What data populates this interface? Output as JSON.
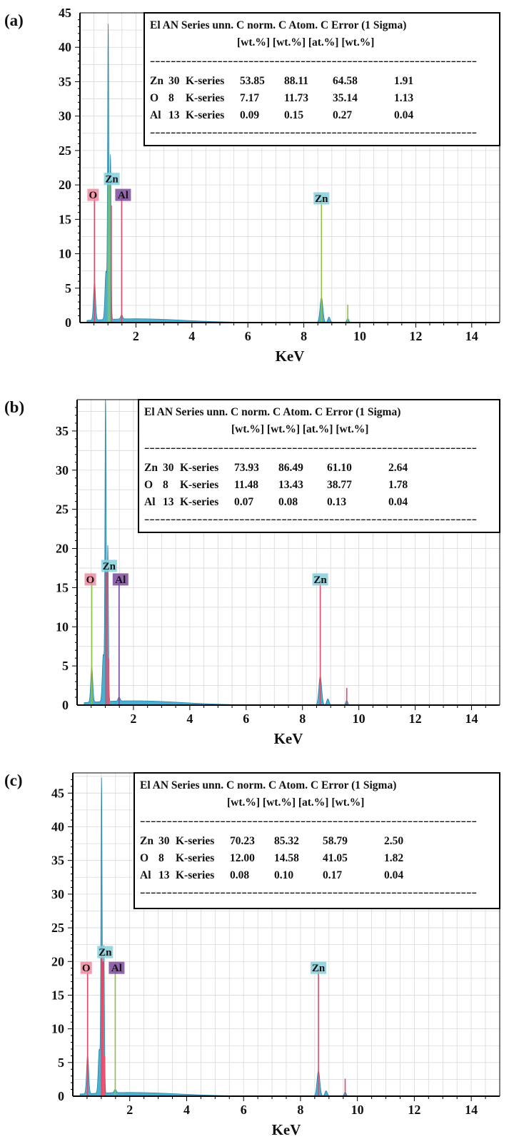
{
  "chart_data": [
    {
      "type": "line",
      "panel_label": "(a)",
      "xlabel": "KeV",
      "ylabel": "",
      "xlim": [
        0,
        15
      ],
      "ylim": [
        0,
        45
      ],
      "x_ticks": [
        "2",
        "4",
        "6",
        "8",
        "10",
        "12",
        "14"
      ],
      "y_ticks": [
        "0",
        "5",
        "10",
        "15",
        "20",
        "25",
        "30",
        "35",
        "40",
        "45"
      ],
      "grid": true,
      "spectrum_color": "#3aa6c8",
      "peaks": [
        {
          "x": 0.52,
          "y": 5.5,
          "w": 0.05
        },
        {
          "x": 0.93,
          "y": 7.0,
          "w": 0.05
        },
        {
          "x": 1.01,
          "y": 42.5,
          "w": 0.03
        },
        {
          "x": 1.09,
          "y": 24.0,
          "w": 0.03
        },
        {
          "x": 1.49,
          "y": 0.6,
          "w": 0.05
        },
        {
          "x": 8.63,
          "y": 3.7,
          "w": 0.07
        },
        {
          "x": 8.9,
          "y": 0.8,
          "w": 0.06
        },
        {
          "x": 9.57,
          "y": 0.6,
          "w": 0.05
        }
      ],
      "markers": [
        {
          "element": "O",
          "x": 0.52,
          "height": 18.5,
          "line_color": "#e24a6a",
          "tag_color": "#f08aa0"
        },
        {
          "element": "Zn",
          "x": 1.01,
          "height": 20.0,
          "line_color": "#8cc63f",
          "tag_color": "#86d0dc"
        },
        {
          "element": "Al",
          "x": 1.49,
          "height": 18.5,
          "line_color": "#e24a6a",
          "tag_color": "#7d4a9e"
        },
        {
          "element": "Zn",
          "x": 8.63,
          "height": 18.0,
          "line_color": "#8cc63f",
          "tag_color": "#86d0dc"
        }
      ],
      "extra_lines": [
        {
          "x": 1.06,
          "height": 20.0,
          "color": "#8cc63f"
        },
        {
          "x": 1.12,
          "height": 17.0,
          "color": "#e24a6a"
        },
        {
          "x": 9.57,
          "height": 2.6,
          "color": "#8cc63f"
        }
      ],
      "table": {
        "header1": "El AN Series  unn.  C norm.  C Atom.  C Error (1 Sigma)",
        "header2": "[wt.%]  [wt.%]  [at.%]    [wt.%]",
        "divider": "---------------------------------------------------------------",
        "rows": [
          {
            "el": "Zn",
            "an": "30",
            "series": "K-series",
            "unn": "53.85",
            "norm": "88.11",
            "atom": "64.58",
            "err": "1.91"
          },
          {
            "el": "O",
            "an": "8",
            "series": "K-series",
            "unn": "7.17",
            "norm": "11.73",
            "atom": "35.14",
            "err": "1.13"
          },
          {
            "el": "Al",
            "an": "13",
            "series": "K-series",
            "unn": "0.09",
            "norm": "0.15",
            "atom": "0.27",
            "err": "0.04"
          }
        ]
      }
    },
    {
      "type": "line",
      "panel_label": "(b)",
      "xlabel": "KeV",
      "ylabel": "",
      "xlim": [
        0,
        15
      ],
      "ylim": [
        0,
        39
      ],
      "x_ticks": [
        "2",
        "4",
        "6",
        "8",
        "10",
        "12",
        "14"
      ],
      "y_ticks": [
        "0",
        "5",
        "10",
        "15",
        "20",
        "25",
        "30",
        "35"
      ],
      "grid": true,
      "spectrum_color": "#3aa6c8",
      "peaks": [
        {
          "x": 0.52,
          "y": 4.5,
          "w": 0.05
        },
        {
          "x": 0.93,
          "y": 6.0,
          "w": 0.05
        },
        {
          "x": 1.01,
          "y": 39.0,
          "w": 0.03
        },
        {
          "x": 1.09,
          "y": 20.0,
          "w": 0.03
        },
        {
          "x": 1.49,
          "y": 0.5,
          "w": 0.05
        },
        {
          "x": 8.63,
          "y": 3.7,
          "w": 0.07
        },
        {
          "x": 8.9,
          "y": 0.8,
          "w": 0.06
        },
        {
          "x": 9.57,
          "y": 0.6,
          "w": 0.05
        }
      ],
      "markers": [
        {
          "element": "O",
          "x": 0.52,
          "height": 16.0,
          "line_color": "#8cc63f",
          "tag_color": "#f08aa0"
        },
        {
          "element": "Zn",
          "x": 1.01,
          "height": 17.0,
          "line_color": "#e24a6a",
          "tag_color": "#86d0dc"
        },
        {
          "element": "Al",
          "x": 1.49,
          "height": 16.0,
          "line_color": "#7d4a9e",
          "tag_color": "#7d4a9e"
        },
        {
          "element": "Zn",
          "x": 8.63,
          "height": 16.0,
          "line_color": "#e24a6a",
          "tag_color": "#86d0dc"
        }
      ],
      "extra_lines": [
        {
          "x": 1.06,
          "height": 17.0,
          "color": "#e24a6a"
        },
        {
          "x": 1.12,
          "height": 6.0,
          "color": "#e24a6a"
        },
        {
          "x": 9.57,
          "height": 2.2,
          "color": "#e24a6a"
        }
      ],
      "table": {
        "header1": "El AN Series  unn.  C norm.  C Atom.  C Error (1 Sigma)",
        "header2": "[wt.%]  [wt.%]  [at.%]    [wt.%]",
        "divider": "---------------------------------------------------------------",
        "rows": [
          {
            "el": "Zn",
            "an": "30",
            "series": "K-series",
            "unn": "73.93",
            "norm": "86.49",
            "atom": "61.10",
            "err": "2.64"
          },
          {
            "el": "O",
            "an": "8",
            "series": "K-series",
            "unn": "11.48",
            "norm": "13.43",
            "atom": "38.77",
            "err": "1.78"
          },
          {
            "el": "Al",
            "an": "13",
            "series": "K-series",
            "unn": "0.07",
            "norm": "0.08",
            "atom": "0.13",
            "err": "0.04"
          }
        ]
      }
    },
    {
      "type": "line",
      "panel_label": "(c)",
      "xlabel": "KeV",
      "ylabel": "",
      "xlim": [
        0,
        15
      ],
      "ylim": [
        0,
        48
      ],
      "x_ticks": [
        "2",
        "4",
        "6",
        "8",
        "10",
        "12",
        "14"
      ],
      "y_ticks": [
        "0",
        "5",
        "10",
        "15",
        "20",
        "25",
        "30",
        "35",
        "40",
        "45"
      ],
      "grid": true,
      "spectrum_color": "#3aa6c8",
      "peaks": [
        {
          "x": 0.52,
          "y": 5.8,
          "w": 0.05
        },
        {
          "x": 0.93,
          "y": 6.5,
          "w": 0.05
        },
        {
          "x": 1.01,
          "y": 46.5,
          "w": 0.03
        },
        {
          "x": 1.09,
          "y": 22.0,
          "w": 0.03
        },
        {
          "x": 1.49,
          "y": 0.5,
          "w": 0.05
        },
        {
          "x": 8.63,
          "y": 3.8,
          "w": 0.07
        },
        {
          "x": 8.9,
          "y": 0.8,
          "w": 0.06
        },
        {
          "x": 9.57,
          "y": 0.6,
          "w": 0.05
        }
      ],
      "markers": [
        {
          "element": "O",
          "x": 0.52,
          "height": 19.0,
          "line_color": "#e24a6a",
          "tag_color": "#f08aa0"
        },
        {
          "element": "Zn",
          "x": 1.01,
          "height": 20.5,
          "line_color": "#e24a6a",
          "tag_color": "#86d0dc"
        },
        {
          "element": "Al",
          "x": 1.49,
          "height": 19.0,
          "line_color": "#8cc63f",
          "tag_color": "#7d4a9e"
        },
        {
          "element": "Zn",
          "x": 8.63,
          "height": 19.0,
          "line_color": "#e24a6a",
          "tag_color": "#86d0dc"
        }
      ],
      "extra_lines": [
        {
          "x": 1.06,
          "height": 20.0,
          "color": "#e24a6a"
        },
        {
          "x": 1.12,
          "height": 6.0,
          "color": "#e24a6a"
        },
        {
          "x": 9.57,
          "height": 2.6,
          "color": "#e24a6a"
        }
      ],
      "table": {
        "header1": "El AN Series  unn.  C norm.  C Atom.  C Error (1 Sigma)",
        "header2": "[wt.%]  [wt.%]  [at.%]    [wt.%]",
        "divider": "---------------------------------------------------------------",
        "rows": [
          {
            "el": "Zn",
            "an": "30",
            "series": "K-series",
            "unn": "70.23",
            "norm": "85.32",
            "atom": "58.79",
            "err": "2.50"
          },
          {
            "el": "O",
            "an": "8",
            "series": "K-series",
            "unn": "12.00",
            "norm": "14.58",
            "atom": "41.05",
            "err": "1.82"
          },
          {
            "el": "Al",
            "an": "13",
            "series": "K-series",
            "unn": "0.08",
            "norm": "0.10",
            "atom": "0.17",
            "err": "0.04"
          }
        ]
      }
    }
  ]
}
